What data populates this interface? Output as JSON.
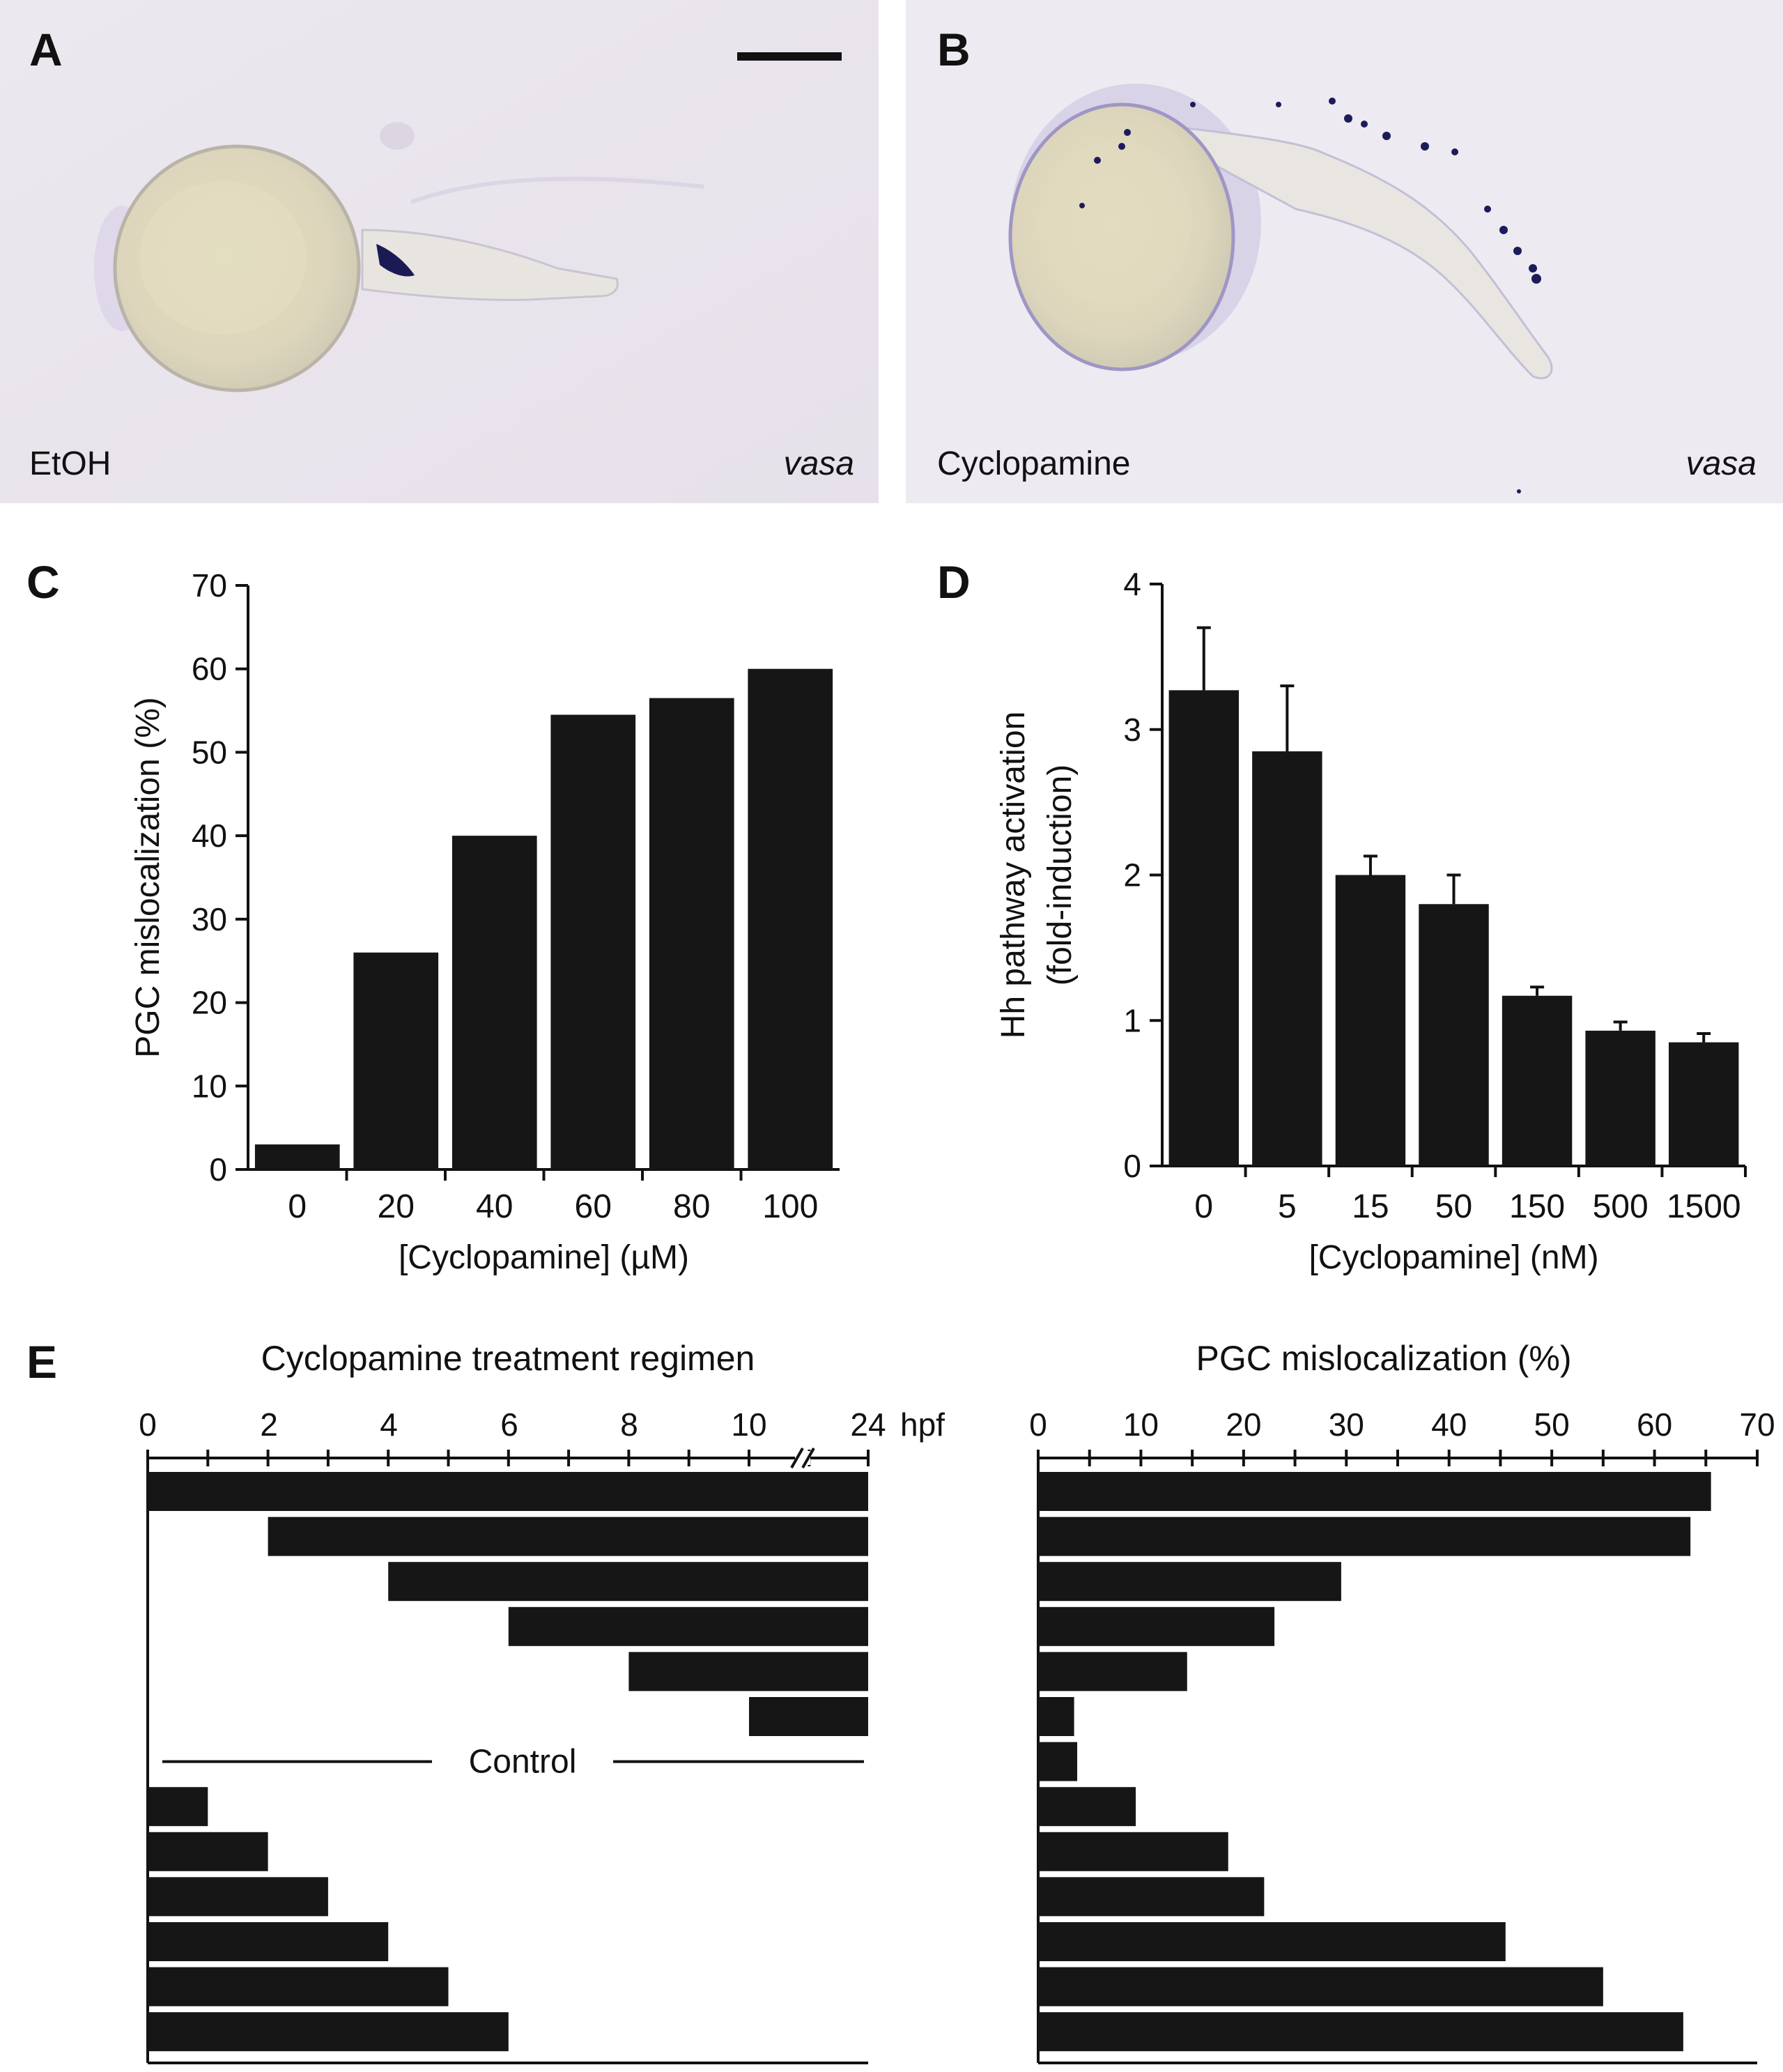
{
  "panels": {
    "A": {
      "letter": "A",
      "label": "EtOH",
      "gene": "vasa"
    },
    "B": {
      "letter": "B",
      "label": "Cyclopamine",
      "gene": "vasa"
    },
    "C": {
      "letter": "C"
    },
    "D": {
      "letter": "D"
    },
    "E": {
      "letter": "E"
    }
  },
  "chart_data": [
    {
      "panel": "C",
      "type": "bar",
      "categories": [
        "0",
        "20",
        "40",
        "60",
        "80",
        "100"
      ],
      "values": [
        3,
        26,
        40,
        54.5,
        56.5,
        60
      ],
      "xlabel": "[Cyclopamine] (µM)",
      "ylabel": "PGC mislocalization (%)",
      "ylim": [
        0,
        70
      ],
      "yticks": [
        0,
        10,
        20,
        30,
        40,
        50,
        60,
        70
      ],
      "grid": false,
      "bar_color": "#161616"
    },
    {
      "panel": "D",
      "type": "bar",
      "categories": [
        "0",
        "5",
        "15",
        "50",
        "150",
        "500",
        "1500"
      ],
      "values": [
        3.27,
        2.85,
        2.0,
        1.8,
        1.17,
        0.93,
        0.85
      ],
      "errors": [
        0.43,
        0.45,
        0.13,
        0.2,
        0.06,
        0.06,
        0.06
      ],
      "xlabel": "[Cyclopamine] (nM)",
      "ylabel": [
        "Hh pathway activation",
        "(fold-induction)"
      ],
      "ylim": [
        0,
        4
      ],
      "yticks": [
        0,
        1,
        2,
        3,
        4
      ],
      "grid": false,
      "bar_color": "#161616"
    },
    {
      "panel": "E-left",
      "type": "bar",
      "orientation": "horizontal-range",
      "title": "Cyclopamine treatment regimen",
      "axis_unit": "hpf",
      "axis_ticks": [
        "0",
        "2",
        "4",
        "6",
        "8",
        "10",
        "24"
      ],
      "axis_break": "between 10 and 24",
      "ranges_hpf": [
        [
          0,
          24
        ],
        [
          2,
          24
        ],
        [
          4,
          24
        ],
        [
          6,
          24
        ],
        [
          8,
          24
        ],
        [
          10,
          24
        ],
        null,
        [
          0,
          1
        ],
        [
          0,
          2
        ],
        [
          0,
          3
        ],
        [
          0,
          4
        ],
        [
          0,
          5
        ],
        [
          0,
          6
        ]
      ],
      "control_label": "Control",
      "control_row": 6,
      "bar_color": "#161616"
    },
    {
      "panel": "E-right",
      "type": "bar",
      "orientation": "horizontal",
      "title": "PGC mislocalization (%)",
      "xlim": [
        0,
        70
      ],
      "xticks": [
        0,
        10,
        20,
        30,
        40,
        50,
        60,
        70
      ],
      "values": [
        65.5,
        63.5,
        29.5,
        23,
        14.5,
        3.5,
        3.8,
        9.5,
        18.5,
        22,
        45.5,
        55,
        62.8
      ],
      "bar_color": "#161616"
    }
  ]
}
